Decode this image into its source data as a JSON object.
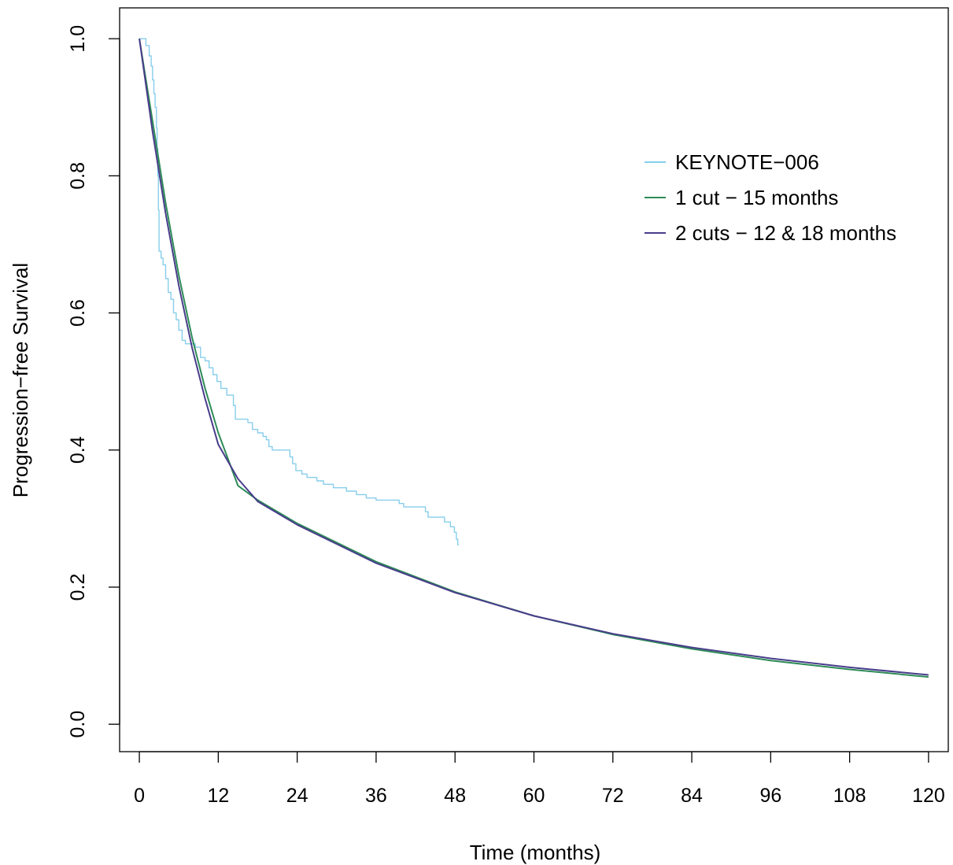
{
  "chart_data": {
    "type": "line",
    "title": "",
    "xlabel": "Time (months)",
    "ylabel": "Progression−free Survival",
    "xlim": [
      -3,
      123
    ],
    "ylim": [
      -0.04,
      1.045
    ],
    "x_ticks": [
      0,
      12,
      24,
      36,
      48,
      60,
      72,
      84,
      96,
      108,
      120
    ],
    "x_tick_labels": [
      "0",
      "12",
      "24",
      "36",
      "48",
      "60",
      "72",
      "84",
      "96",
      "108",
      "120"
    ],
    "y_ticks": [
      0.0,
      0.2,
      0.4,
      0.6,
      0.8,
      1.0
    ],
    "y_tick_labels": [
      "0.0",
      "0.2",
      "0.4",
      "0.6",
      "0.8",
      "1.0"
    ],
    "grid": false,
    "legend_position": "top-right",
    "series": [
      {
        "name": "KEYNOTE−006",
        "color": "#87ceeb",
        "style": "step",
        "points": [
          [
            0,
            1.0
          ],
          [
            0.5,
            1.0
          ],
          [
            1.0,
            0.99
          ],
          [
            1.5,
            0.975
          ],
          [
            1.8,
            0.96
          ],
          [
            2.0,
            0.94
          ],
          [
            2.2,
            0.92
          ],
          [
            2.4,
            0.9
          ],
          [
            2.6,
            0.87
          ],
          [
            2.7,
            0.84
          ],
          [
            2.8,
            0.8
          ],
          [
            2.9,
            0.75
          ],
          [
            3.0,
            0.69
          ],
          [
            3.3,
            0.68
          ],
          [
            3.6,
            0.67
          ],
          [
            4.0,
            0.65
          ],
          [
            4.4,
            0.63
          ],
          [
            4.8,
            0.62
          ],
          [
            5.2,
            0.6
          ],
          [
            5.6,
            0.59
          ],
          [
            6.0,
            0.575
          ],
          [
            6.5,
            0.56
          ],
          [
            7.0,
            0.555
          ],
          [
            8.5,
            0.55
          ],
          [
            9.3,
            0.535
          ],
          [
            10.0,
            0.53
          ],
          [
            10.6,
            0.52
          ],
          [
            11.2,
            0.51
          ],
          [
            11.8,
            0.5
          ],
          [
            12.4,
            0.49
          ],
          [
            13.3,
            0.48
          ],
          [
            14.3,
            0.465
          ],
          [
            14.6,
            0.445
          ],
          [
            16.5,
            0.44
          ],
          [
            17.2,
            0.43
          ],
          [
            18.0,
            0.425
          ],
          [
            18.8,
            0.42
          ],
          [
            19.3,
            0.415
          ],
          [
            19.7,
            0.405
          ],
          [
            20.2,
            0.4
          ],
          [
            22.9,
            0.39
          ],
          [
            23.3,
            0.38
          ],
          [
            23.8,
            0.37
          ],
          [
            24.7,
            0.365
          ],
          [
            25.5,
            0.36
          ],
          [
            27.0,
            0.355
          ],
          [
            28.0,
            0.35
          ],
          [
            29.5,
            0.345
          ],
          [
            31.5,
            0.34
          ],
          [
            33.0,
            0.335
          ],
          [
            34.5,
            0.33
          ],
          [
            36.0,
            0.327
          ],
          [
            39.5,
            0.322
          ],
          [
            40.2,
            0.317
          ],
          [
            43.5,
            0.31
          ],
          [
            43.9,
            0.302
          ],
          [
            46.4,
            0.295
          ],
          [
            47.3,
            0.288
          ],
          [
            47.9,
            0.28
          ],
          [
            48.2,
            0.27
          ],
          [
            48.4,
            0.262
          ],
          [
            48.6,
            0.262
          ]
        ]
      },
      {
        "name": "1 cut − 15 months",
        "color": "#2e8b57",
        "style": "line",
        "points": [
          [
            0,
            1.0
          ],
          [
            2,
            0.88
          ],
          [
            4,
            0.76
          ],
          [
            6,
            0.655
          ],
          [
            8,
            0.565
          ],
          [
            10,
            0.49
          ],
          [
            12,
            0.425
          ],
          [
            15,
            0.348
          ],
          [
            18,
            0.327
          ],
          [
            24,
            0.293
          ],
          [
            36,
            0.237
          ],
          [
            48,
            0.193
          ],
          [
            60,
            0.158
          ],
          [
            72,
            0.131
          ],
          [
            84,
            0.11
          ],
          [
            96,
            0.093
          ],
          [
            108,
            0.08
          ],
          [
            120,
            0.069
          ]
        ]
      },
      {
        "name": "2 cuts − 12 & 18 months",
        "color": "#483d8b",
        "style": "line",
        "points": [
          [
            0,
            1.0
          ],
          [
            2,
            0.865
          ],
          [
            4,
            0.745
          ],
          [
            6,
            0.64
          ],
          [
            8,
            0.55
          ],
          [
            10,
            0.475
          ],
          [
            12,
            0.408
          ],
          [
            15,
            0.358
          ],
          [
            18,
            0.325
          ],
          [
            24,
            0.291
          ],
          [
            36,
            0.235
          ],
          [
            48,
            0.192
          ],
          [
            60,
            0.158
          ],
          [
            72,
            0.132
          ],
          [
            84,
            0.112
          ],
          [
            96,
            0.096
          ],
          [
            108,
            0.083
          ],
          [
            120,
            0.072
          ]
        ]
      }
    ]
  }
}
